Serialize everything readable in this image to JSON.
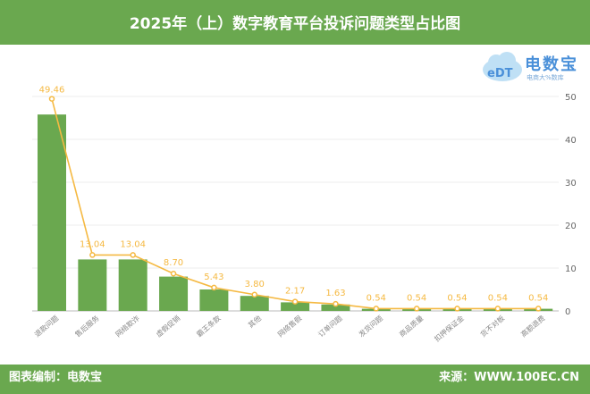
{
  "header": {
    "title": "2025年（上）数字教育平台投诉问题类型占比图"
  },
  "footer": {
    "left": "图表编制：电数宝",
    "right": "来源：WWW.100EC.CN"
  },
  "logo": {
    "name": "电数宝",
    "tagline": "电商大%数库",
    "mark": "eDT"
  },
  "colors": {
    "bar": "#6aa84f",
    "line": "#f5b942",
    "header": "#6aa84f"
  },
  "chart_data": {
    "type": "bar+line",
    "categories": [
      "退款问题",
      "售后服务",
      "网络欺诈",
      "虚假促销",
      "霸王条款",
      "其他",
      "网络售假",
      "订单问题",
      "发货问题",
      "商品质量",
      "扣押保证金",
      "货不对板",
      "高额退费"
    ],
    "bar_values": [
      45.8,
      12,
      12,
      8,
      5,
      3.5,
      2,
      1.5,
      0.5,
      0.5,
      0.5,
      0.5,
      0.5
    ],
    "line_values": [
      49.46,
      13.04,
      13.04,
      8.7,
      5.43,
      3.8,
      2.17,
      1.63,
      0.54,
      0.54,
      0.54,
      0.54,
      0.54
    ],
    "line_labels": [
      "49.46",
      "13.04",
      "13.04",
      "8.70",
      "5.43",
      "3.80",
      "2.17",
      "1.63",
      "0.54",
      "0.54",
      "0.54",
      "0.54",
      "0.54"
    ],
    "y_axis": {
      "position": "right",
      "ylim": [
        0,
        50
      ],
      "ticks": [
        "0",
        "10",
        "20",
        "30",
        "40",
        "50"
      ]
    },
    "grid": true
  }
}
